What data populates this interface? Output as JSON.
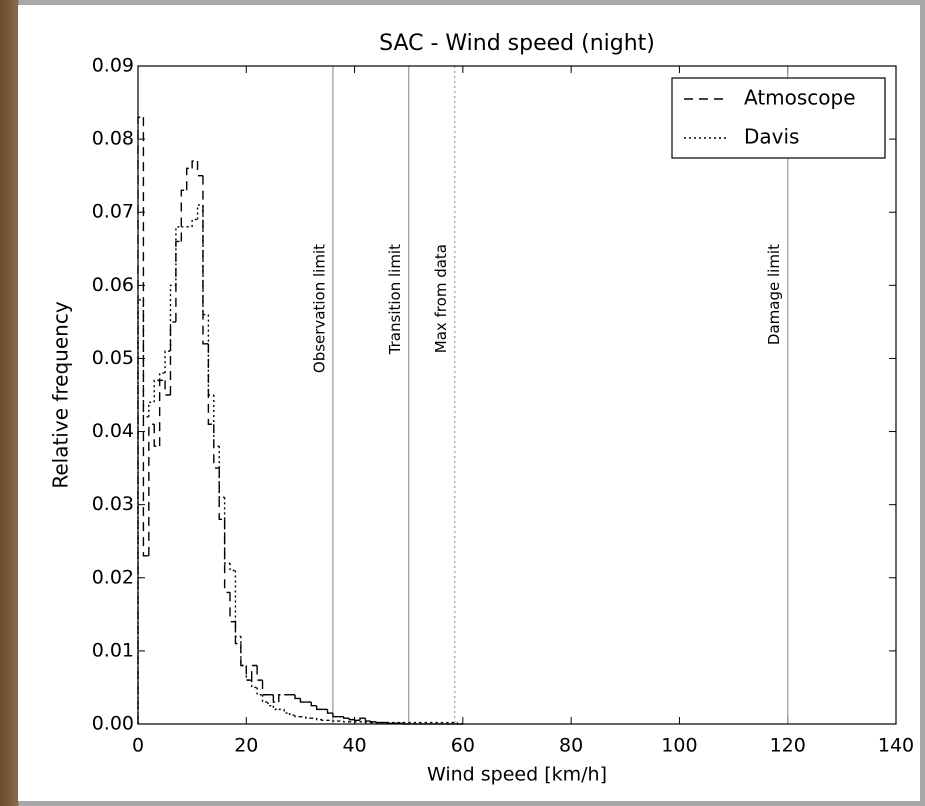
{
  "chart_data": {
    "type": "histogram-step",
    "title": "SAC - Wind speed (night)",
    "xlabel": "Wind speed [km/h]",
    "ylabel": "Relative frequency",
    "bins": [
      0,
      1,
      2,
      3,
      4,
      5,
      6,
      7,
      8,
      9,
      10,
      11,
      12,
      13,
      14,
      15,
      16,
      17,
      18,
      19,
      20,
      21,
      22,
      23,
      24,
      25,
      26,
      27,
      28,
      29,
      30,
      31,
      32,
      33,
      34,
      35,
      36,
      37,
      38,
      39,
      40,
      41,
      42,
      43,
      44,
      45,
      46,
      47,
      48,
      49,
      50,
      51,
      52,
      53,
      54,
      55,
      56,
      57,
      58,
      59,
      60
    ],
    "series": [
      {
        "name": "Atmoscope",
        "color": "#000000",
        "linestyle": "dashed",
        "values": [
          0.083,
          0.023,
          0.041,
          0.038,
          0.047,
          0.045,
          0.055,
          0.066,
          0.073,
          0.076,
          0.077,
          0.075,
          0.052,
          0.041,
          0.035,
          0.028,
          0.018,
          0.014,
          0.011,
          0.008,
          0.006,
          0.008,
          0.006,
          0.004,
          0.004,
          0.003,
          0.004,
          0.004,
          0.004,
          0.0035,
          0.003,
          0.003,
          0.0025,
          0.002,
          0.002,
          0.0015,
          0.001,
          0.001,
          0.0008,
          0.0006,
          0.0005,
          0.0008,
          0.0004,
          0.0003,
          0.0002,
          0.0002,
          0.0001,
          0.0001,
          0.0001,
          0,
          0,
          0,
          0,
          0,
          0,
          0,
          0,
          0,
          0,
          0
        ]
      },
      {
        "name": "Davis",
        "color": "#000000",
        "linestyle": "dotted",
        "values": [
          0.058,
          0.042,
          0.044,
          0.047,
          0.048,
          0.051,
          0.06,
          0.068,
          0.068,
          0.068,
          0.069,
          0.071,
          0.056,
          0.045,
          0.038,
          0.031,
          0.022,
          0.021,
          0.012,
          0.008,
          0.006,
          0.005,
          0.004,
          0.003,
          0.0025,
          0.002,
          0.002,
          0.0015,
          0.0012,
          0.001,
          0.001,
          0.0008,
          0.0008,
          0.0006,
          0.0005,
          0.0005,
          0.0004,
          0.0004,
          0.0003,
          0.0003,
          0.0003,
          0.0003,
          0.0002,
          0.0002,
          0.0002,
          0.0002,
          0.0002,
          0.0002,
          0.0002,
          0.0002,
          0.0002,
          0.0002,
          0.0002,
          0.0002,
          0.0002,
          0.0002,
          0.0002,
          0.0002,
          0.0002,
          0
        ]
      }
    ],
    "vlines": [
      {
        "x": 36,
        "label": "Observation limit",
        "linestyle": "solid"
      },
      {
        "x": 50,
        "label": "Transition limit",
        "linestyle": "solid"
      },
      {
        "x": 58.5,
        "label": "Max from data",
        "linestyle": "dotted"
      },
      {
        "x": 120,
        "label": "Damage limit",
        "linestyle": "solid"
      }
    ],
    "xlim": [
      0,
      140
    ],
    "xticks": [
      0,
      20,
      40,
      60,
      80,
      100,
      120,
      140
    ],
    "ylim": [
      0,
      0.09
    ],
    "yticks": [
      {
        "value": 0,
        "label": "0.00"
      },
      {
        "value": 0.01,
        "label": "0.01"
      },
      {
        "value": 0.02,
        "label": "0.02"
      },
      {
        "value": 0.03,
        "label": "0.03"
      },
      {
        "value": 0.04,
        "label": "0.04"
      },
      {
        "value": 0.05,
        "label": "0.05"
      },
      {
        "value": 0.06,
        "label": "0.06"
      },
      {
        "value": 0.07,
        "label": "0.07"
      },
      {
        "value": 0.08,
        "label": "0.08"
      },
      {
        "value": 0.09,
        "label": "0.09"
      }
    ],
    "legend": "upper right"
  }
}
